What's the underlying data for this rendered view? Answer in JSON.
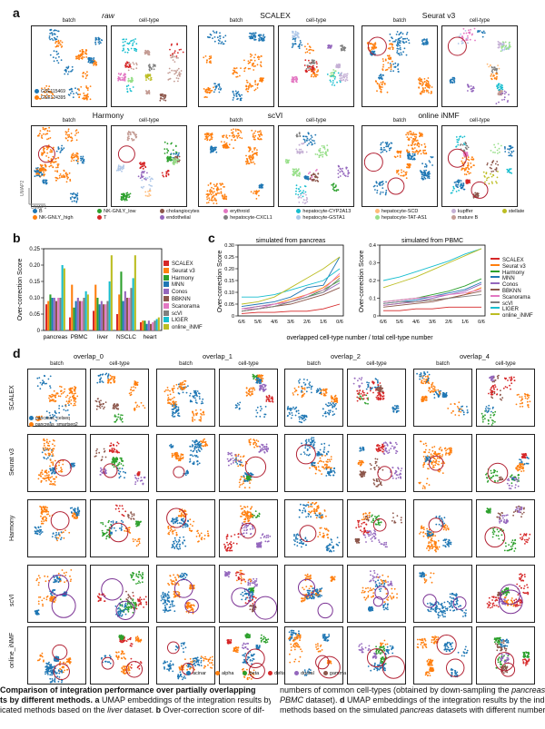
{
  "panels": {
    "a": "a",
    "b": "b",
    "c": "c",
    "d": "d"
  },
  "panel_a": {
    "methods": [
      "raw",
      "SCALEX",
      "Seurat v3",
      "Harmony",
      "scVI",
      "online iNMF"
    ],
    "sub": {
      "batch": "batch",
      "celltype": "cell-type"
    },
    "batch_legend": [
      "GSE115469",
      "GSE124395"
    ],
    "axis": {
      "umap1": "UMAP1",
      "umap2": "UMAP2"
    },
    "celltypes": [
      {
        "name": "B",
        "color": "#1f77b4"
      },
      {
        "name": "NK-GNLY_low",
        "color": "#2ca02c"
      },
      {
        "name": "cholangiocytes",
        "color": "#8c564b"
      },
      {
        "name": "erythroid",
        "color": "#e377c2"
      },
      {
        "name": "hepatocyte-CYP2A13",
        "color": "#17becf"
      },
      {
        "name": "hepatocyte-SCD",
        "color": "#ffbb78"
      },
      {
        "name": "kupffer",
        "color": "#c5b0d5"
      },
      {
        "name": "stellate",
        "color": "#bcbd22"
      },
      {
        "name": "NK-GNLY_high",
        "color": "#ff7f0e"
      },
      {
        "name": "T",
        "color": "#d62728"
      },
      {
        "name": "endothelial",
        "color": "#9467bd"
      },
      {
        "name": "hepatocyte-CXCL1",
        "color": "#7f7f7f"
      },
      {
        "name": "hepatocyte-GSTA1",
        "color": "#aec7e8"
      },
      {
        "name": "hepatocyte-TAT-AS1",
        "color": "#98df8a"
      },
      {
        "name": "mature B",
        "color": "#c49c94"
      }
    ]
  },
  "methods_colors": {
    "SCALEX": "#d62728",
    "Seurat v3": "#ff7f0e",
    "Harmony": "#2ca02c",
    "MNN": "#1f77b4",
    "Conos": "#9467bd",
    "BBKNN": "#8c564b",
    "Scanorama": "#e377c2",
    "scVI": "#7f7f7f",
    "LIGER": "#17becf",
    "online_iNMF": "#bcbd22"
  },
  "chart_b": {
    "type": "bar",
    "ylabel": "Over-correction Score",
    "ylim": [
      0,
      0.25
    ],
    "yticks": [
      "0",
      "0.05",
      "0.10",
      "0.15",
      "0.20",
      "0.25"
    ],
    "categories": [
      "pancreas",
      "PBMC",
      "liver",
      "NSCLC",
      "heart"
    ],
    "series": [
      {
        "name": "SCALEX",
        "values": [
          0.08,
          0.04,
          0.06,
          0.05,
          0.025
        ]
      },
      {
        "name": "Seurat v3",
        "values": [
          0.09,
          0.14,
          0.14,
          0.11,
          0.03
        ]
      },
      {
        "name": "Harmony",
        "values": [
          0.11,
          0.07,
          0.1,
          0.18,
          0.03
        ]
      },
      {
        "name": "MNN",
        "values": [
          0.1,
          0.09,
          0.08,
          0.09,
          0.02
        ]
      },
      {
        "name": "Conos",
        "values": [
          0.1,
          0.1,
          0.09,
          0.12,
          0.03
        ]
      },
      {
        "name": "BBKNN",
        "values": [
          0.09,
          0.09,
          0.08,
          0.1,
          0.02
        ]
      },
      {
        "name": "Scanorama",
        "values": [
          0.1,
          0.09,
          0.08,
          0.1,
          0.025
        ]
      },
      {
        "name": "scVI",
        "values": [
          0.1,
          0.1,
          0.09,
          0.13,
          0.03
        ]
      },
      {
        "name": "LIGER",
        "values": [
          0.2,
          0.12,
          0.15,
          0.16,
          0.035
        ]
      },
      {
        "name": "online_iNMF",
        "values": [
          0.19,
          0.11,
          0.23,
          0.23,
          0.04
        ]
      }
    ],
    "legend": [
      "SCALEX",
      "Seurat v3",
      "Harmony",
      "MNN",
      "Conos",
      "BBKNN",
      "Scanorama",
      "scVI",
      "LIGER",
      "online_iNMF"
    ]
  },
  "chart_c": {
    "type": "line",
    "xlabel": "overlapped cell-type number / total cell-type number",
    "ylabel": "Over-correction Score",
    "x": [
      "6/6",
      "5/6",
      "4/6",
      "3/6",
      "2/6",
      "1/6",
      "0/6"
    ],
    "legend": [
      "SCALEX",
      "Seurat v3",
      "Harmony",
      "MNN",
      "Conos",
      "BBKNN",
      "Scanorama",
      "scVI",
      "LIGER",
      "online_iNMF"
    ],
    "left": {
      "title": "simulated from pancreas",
      "ylim": [
        0,
        0.3
      ],
      "yticks": [
        "0",
        "0.05",
        "0.10",
        "0.15",
        "0.20",
        "0.25",
        "0.30"
      ],
      "series": [
        {
          "name": "SCALEX",
          "values": [
            0.01,
            0.015,
            0.015,
            0.02,
            0.02,
            0.03,
            0.05
          ]
        },
        {
          "name": "Seurat v3",
          "values": [
            0.03,
            0.04,
            0.05,
            0.07,
            0.09,
            0.12,
            0.17
          ]
        },
        {
          "name": "Harmony",
          "values": [
            0.02,
            0.03,
            0.04,
            0.06,
            0.08,
            0.11,
            0.15
          ]
        },
        {
          "name": "MNN",
          "values": [
            0.04,
            0.05,
            0.06,
            0.08,
            0.12,
            0.13,
            0.25
          ]
        },
        {
          "name": "Conos",
          "values": [
            0.03,
            0.04,
            0.05,
            0.06,
            0.08,
            0.1,
            0.14
          ]
        },
        {
          "name": "BBKNN",
          "values": [
            0.02,
            0.03,
            0.04,
            0.05,
            0.07,
            0.09,
            0.12
          ]
        },
        {
          "name": "Scanorama",
          "values": [
            0.03,
            0.03,
            0.05,
            0.06,
            0.09,
            0.11,
            0.18
          ]
        },
        {
          "name": "scVI",
          "values": [
            0.02,
            0.03,
            0.04,
            0.06,
            0.08,
            0.1,
            0.16
          ]
        },
        {
          "name": "LIGER",
          "values": [
            0.08,
            0.08,
            0.09,
            0.11,
            0.13,
            0.15,
            0.2
          ]
        },
        {
          "name": "online_iNMF",
          "values": [
            0.05,
            0.06,
            0.08,
            0.12,
            0.16,
            0.2,
            0.25
          ]
        }
      ]
    },
    "right": {
      "title": "simulated from PBMC",
      "ylim": [
        0,
        0.4
      ],
      "yticks": [
        "0",
        "0.1",
        "0.2",
        "0.3",
        "0.4"
      ],
      "series": [
        {
          "name": "SCALEX",
          "values": [
            0.03,
            0.03,
            0.04,
            0.04,
            0.05,
            0.05,
            0.05
          ]
        },
        {
          "name": "Seurat v3",
          "values": [
            0.06,
            0.07,
            0.08,
            0.09,
            0.1,
            0.12,
            0.16
          ]
        },
        {
          "name": "Harmony",
          "values": [
            0.08,
            0.09,
            0.1,
            0.12,
            0.14,
            0.17,
            0.21
          ]
        },
        {
          "name": "MNN",
          "values": [
            0.07,
            0.08,
            0.09,
            0.11,
            0.13,
            0.15,
            0.19
          ]
        },
        {
          "name": "Conos",
          "values": [
            0.06,
            0.07,
            0.08,
            0.1,
            0.12,
            0.14,
            0.18
          ]
        },
        {
          "name": "BBKNN",
          "values": [
            0.05,
            0.06,
            0.07,
            0.08,
            0.1,
            0.12,
            0.14
          ]
        },
        {
          "name": "Scanorama",
          "values": [
            0.08,
            0.09,
            0.1,
            0.11,
            0.12,
            0.13,
            0.15
          ]
        },
        {
          "name": "scVI",
          "values": [
            0.07,
            0.08,
            0.08,
            0.09,
            0.1,
            0.11,
            0.12
          ]
        },
        {
          "name": "LIGER",
          "values": [
            0.2,
            0.22,
            0.25,
            0.28,
            0.31,
            0.35,
            0.38
          ]
        },
        {
          "name": "online_iNMF",
          "values": [
            0.16,
            0.19,
            0.22,
            0.26,
            0.3,
            0.34,
            0.38
          ]
        }
      ]
    }
  },
  "panel_d": {
    "overlaps": [
      "overlap_0",
      "overlap_1",
      "overlap_2",
      "overlap_4"
    ],
    "rows": [
      "SCALEX",
      "Seurat v3",
      "Harmony",
      "scVI",
      "online_iNMF"
    ],
    "batch_legend": [
      "pancreas_celseq",
      "pancreas_smartseq2"
    ],
    "celltypes": [
      {
        "name": "acinar",
        "color": "#1f77b4"
      },
      {
        "name": "alpha",
        "color": "#ff7f0e"
      },
      {
        "name": "beta",
        "color": "#2ca02c"
      },
      {
        "name": "delta",
        "color": "#d62728"
      },
      {
        "name": "ductal",
        "color": "#9467bd"
      },
      {
        "name": "gamma",
        "color": "#8c564b"
      }
    ]
  },
  "caption": {
    "left_bold": "Comparison of integration performance over partially overlapping",
    "left_bold2": "ts by different methods.",
    "left_a": " a",
    "left_a_text": " UMAP embeddings of the integration results by",
    "left_line3_a": "icated methods based on the ",
    "left_line3_liver": "liver",
    "left_line3_b": " dataset. ",
    "left_line3_bb": "b",
    "left_line3_c": " Over-correction score of dif-",
    "right_line1_a": "numbers of common cell-types (obtained by down-sampling the ",
    "right_line1_i": "pancreas",
    "right_line2_i": "PBMC",
    "right_line2_a": " dataset). ",
    "right_line2_d": "d",
    "right_line2_b": " UMAP embeddings of the integration results by the indic",
    "right_line3_a": "methods based on the simulated ",
    "right_line3_i": "pancreas",
    "right_line3_b": " datasets with different numbers"
  }
}
